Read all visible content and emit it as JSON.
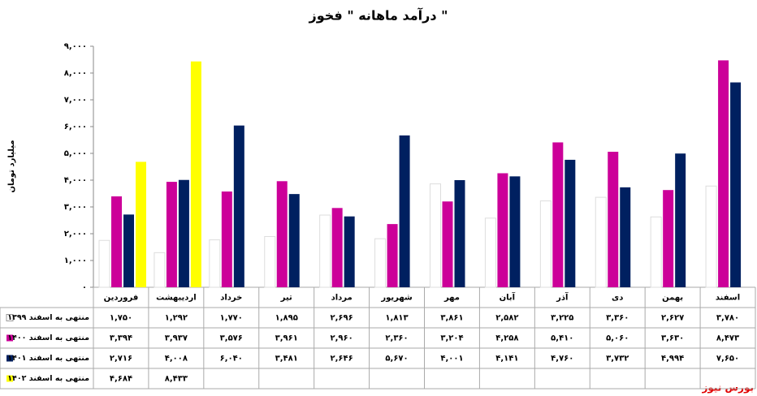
{
  "chart_data": {
    "type": "bar",
    "title": "درآمد ماهانه \" فخوز \"",
    "y_label": "میلیارد تومان",
    "watermark": "بورس نیوز",
    "categories": [
      "فروردین",
      "اردیبهشت",
      "خرداد",
      "تیر",
      "مرداد",
      "شهریور",
      "مهر",
      "آبان",
      "آذر",
      "دی",
      "بهمن",
      "اسفند"
    ],
    "series": [
      {
        "name": "منتهی به اسفند ۱۳۹۹",
        "color": "#ffffff",
        "values": [
          1750,
          1292,
          1770,
          1895,
          2696,
          1813,
          3861,
          2582,
          3225,
          3360,
          2627,
          3780
        ],
        "value_labels": [
          "۱,۷۵۰",
          "۱,۲۹۲",
          "۱,۷۷۰",
          "۱,۸۹۵",
          "۲,۶۹۶",
          "۱,۸۱۳",
          "۳,۸۶۱",
          "۲,۵۸۲",
          "۳,۲۲۵",
          "۳,۳۶۰",
          "۲,۶۲۷",
          "۳,۷۸۰"
        ]
      },
      {
        "name": "منتهی به اسفند ۱۴۰۰",
        "color": "#cc0099",
        "values": [
          3394,
          3937,
          3576,
          3961,
          2960,
          2360,
          3204,
          4258,
          5410,
          5060,
          3630,
          8473
        ],
        "value_labels": [
          "۳,۳۹۴",
          "۳,۹۳۷",
          "۳,۵۷۶",
          "۳,۹۶۱",
          "۲,۹۶۰",
          "۲,۳۶۰",
          "۳,۲۰۴",
          "۴,۲۵۸",
          "۵,۴۱۰",
          "۵,۰۶۰",
          "۳,۶۳۰",
          "۸,۴۷۳"
        ]
      },
      {
        "name": "منتهی به اسفند ۱۴۰۱",
        "color": "#002060",
        "values": [
          2716,
          4008,
          6040,
          3481,
          2646,
          5670,
          4001,
          4141,
          4760,
          3732,
          4994,
          7650
        ],
        "value_labels": [
          "۲,۷۱۶",
          "۴,۰۰۸",
          "۶,۰۴۰",
          "۳,۴۸۱",
          "۲,۶۴۶",
          "۵,۶۷۰",
          "۴,۰۰۱",
          "۴,۱۴۱",
          "۴,۷۶۰",
          "۳,۷۳۲",
          "۴,۹۹۴",
          "۷,۶۵۰"
        ]
      },
      {
        "name": "منتهی به اسفند ۱۴۰۲",
        "color": "#ffff00",
        "values": [
          4684,
          8433,
          null,
          null,
          null,
          null,
          null,
          null,
          null,
          null,
          null,
          null
        ],
        "value_labels": [
          "۴,۶۸۴",
          "۸,۴۳۳",
          null,
          null,
          null,
          null,
          null,
          null,
          null,
          null,
          null,
          null
        ]
      }
    ],
    "ylim": [
      0,
      9000
    ],
    "yticks": [
      {
        "value": 0,
        "label": "۰"
      },
      {
        "value": 1000,
        "label": "۱,۰۰۰"
      },
      {
        "value": 2000,
        "label": "۲,۰۰۰"
      },
      {
        "value": 3000,
        "label": "۳,۰۰۰"
      },
      {
        "value": 4000,
        "label": "۴,۰۰۰"
      },
      {
        "value": 5000,
        "label": "۵,۰۰۰"
      },
      {
        "value": 6000,
        "label": "۶,۰۰۰"
      },
      {
        "value": 7000,
        "label": "۷,۰۰۰"
      },
      {
        "value": 8000,
        "label": "۸,۰۰۰"
      },
      {
        "value": 9000,
        "label": "۹,۰۰۰"
      }
    ]
  }
}
